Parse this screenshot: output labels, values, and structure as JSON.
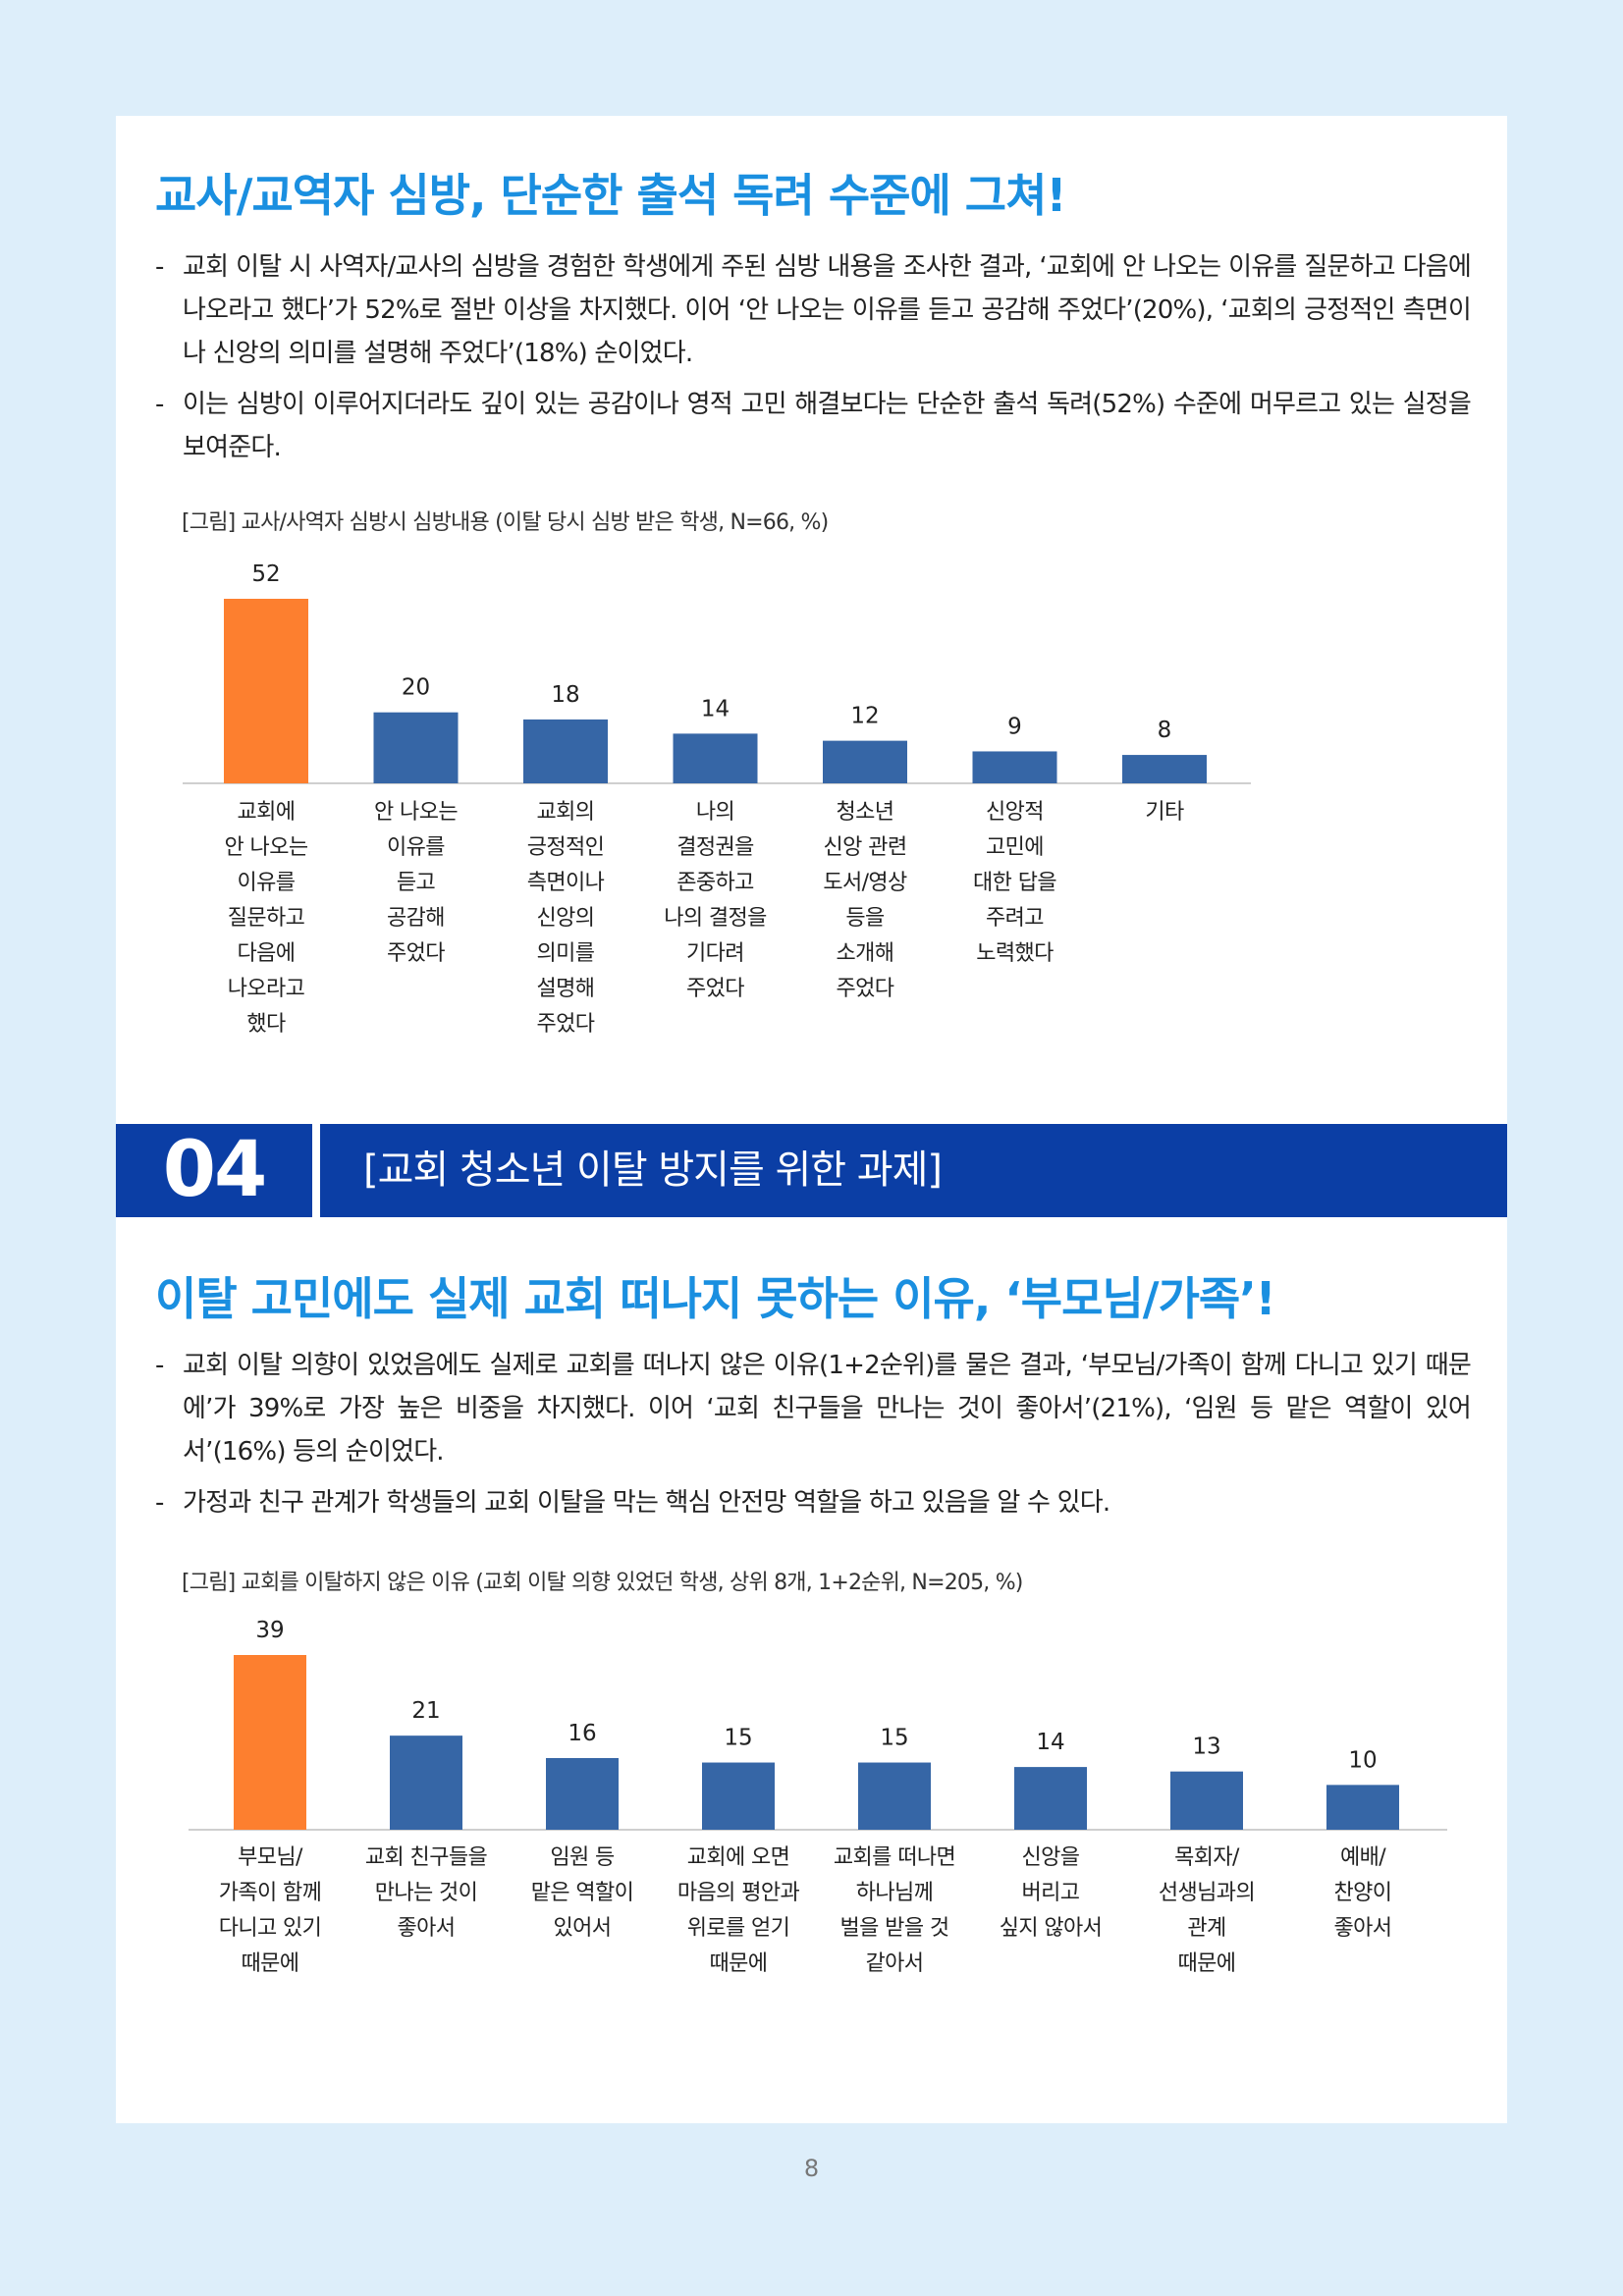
{
  "section1": {
    "heading": "교사/교역자 심방, 단순한 출석 독려 수준에 그쳐!",
    "bullets": [
      "교회 이탈 시 사역자/교사의 심방을 경험한 학생에게 주된 심방 내용을 조사한 결과, ‘교회에 안 나오는 이유를 질문하고 다음에 나오라고 했다’가 52%로 절반 이상을 차지했다. 이어 ‘안 나오는 이유를 듣고 공감해 주었다’(20%), ‘교회의 긍정적인 측면이나 신앙의 의미를 설명해 주었다’(18%) 순이었다.",
      "이는 심방이 이루어지더라도 깊이 있는 공감이나 영적 고민 해결보다는 단순한 출석 독려(52%) 수준에 머무르고 있는 실정을 보여준다."
    ],
    "caption": "[그림] 교사/사역자 심방시 심방내용 (이탈 당시 심방 받은 학생, N=66, %)"
  },
  "banner": {
    "number": "04",
    "title": "[교회 청소년 이탈 방지를 위한 과제]"
  },
  "section2": {
    "heading": "이탈 고민에도 실제 교회 떠나지 못하는 이유, ‘부모님/가족’!",
    "bullets": [
      "교회 이탈 의향이 있었음에도 실제로 교회를 떠나지 않은 이유(1+2순위)를 물은 결과, ‘부모님/가족이 함께 다니고 있기 때문에’가 39%로 가장 높은 비중을 차지했다. 이어 ‘교회 친구들을 만나는 것이 좋아서’(21%), ‘임원 등 맡은 역할이 있어서’(16%) 등의 순이었다.",
      "가정과 친구 관계가 학생들의 교회 이탈을 막는 핵심 안전망 역할을 하고 있음을 알 수 있다."
    ],
    "caption": "[그림] 교회를 이탈하지 않은 이유 (교회 이탈 의향 있었던 학생, 상위 8개, 1+2순위, N=205, %)"
  },
  "page_number": "8",
  "colors": {
    "highlight": "#fd7f2f",
    "bar": "#3666a6",
    "heading": "#1a8fe0",
    "banner": "#0b3ea5"
  },
  "chart_data": [
    {
      "type": "bar",
      "categories": [
        "교회에\n안 나오는\n이유를\n질문하고\n다음에\n나오라고\n했다",
        "안 나오는\n이유를\n듣고\n공감해\n주었다",
        "교회의\n긍정적인\n측면이나\n신앙의\n의미를\n설명해\n주었다",
        "나의\n결정권을\n존중하고\n나의 결정을\n기다려\n주었다",
        "청소년\n신앙 관련\n도서/영상\n등을\n소개해\n주었다",
        "신앙적\n고민에\n대한 답을\n주려고\n노력했다",
        "기타"
      ],
      "values": [
        52,
        20,
        18,
        14,
        12,
        9,
        8
      ],
      "highlight_index": 0
    },
    {
      "type": "bar",
      "categories": [
        "부모님/\n가족이 함께\n다니고 있기\n때문에",
        "교회 친구들을\n만나는 것이\n좋아서",
        "임원 등\n맡은 역할이\n있어서",
        "교회에 오면\n마음의 평안과\n위로를 얻기\n때문에",
        "교회를 떠나면\n하나님께\n벌을 받을 것\n같아서",
        "신앙을\n버리고\n싶지 않아서",
        "목회자/\n선생님과의\n관계\n때문에",
        "예배/\n찬양이\n좋아서"
      ],
      "values": [
        39,
        21,
        16,
        15,
        15,
        14,
        13,
        10
      ],
      "highlight_index": 0
    }
  ]
}
